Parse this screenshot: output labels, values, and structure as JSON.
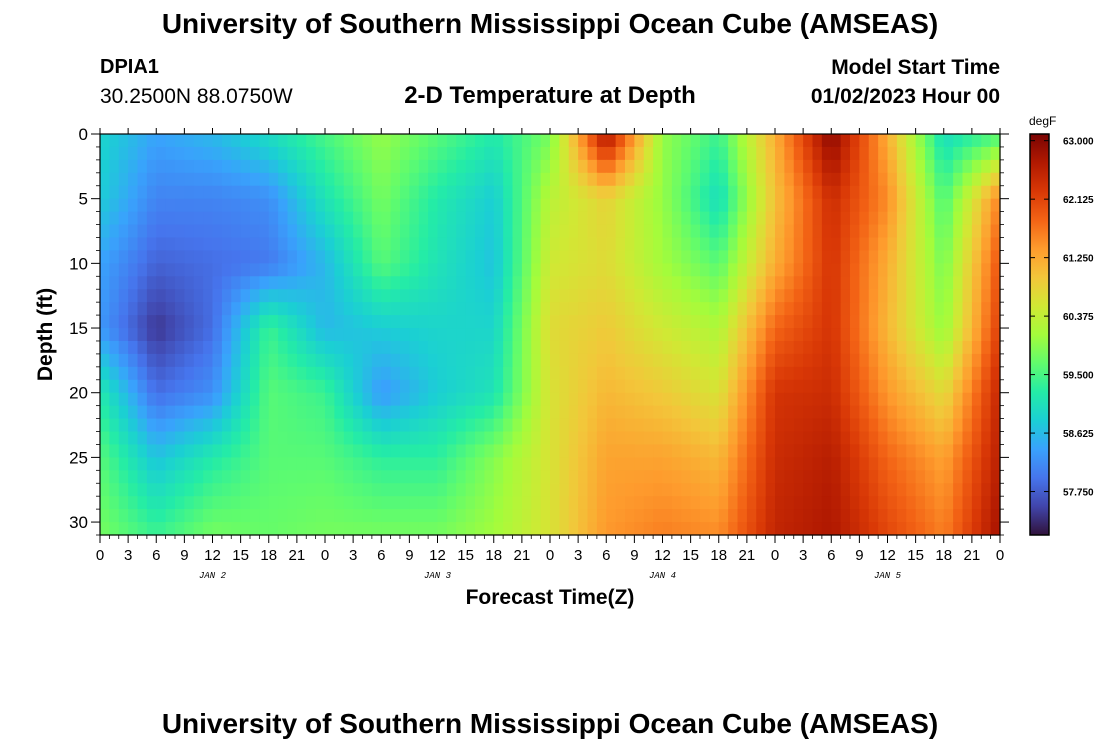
{
  "header": {
    "title": "University of Southern Mississippi Ocean Cube (AMSEAS)",
    "station": "DPIA1",
    "coords": "30.2500N  88.0750W",
    "subtitle": "2-D Temperature at Depth",
    "model_start_label": "Model Start Time",
    "model_start_value": "01/02/2023 Hour 00"
  },
  "footer": {
    "title": "University of Southern Mississippi Ocean Cube (AMSEAS)"
  },
  "chart_data": {
    "type": "heatmap",
    "title": "2-D Temperature at Depth",
    "xlabel": "Forecast Time(Z)",
    "ylabel": "Depth (ft)",
    "x_unit": "hours since 01/02/2023 00Z",
    "xlim": [
      0,
      96
    ],
    "ylim": [
      0,
      31
    ],
    "x_tick_values": [
      0,
      3,
      6,
      9,
      12,
      15,
      18,
      21,
      24,
      27,
      30,
      33,
      36,
      39,
      42,
      45,
      48,
      51,
      54,
      57,
      60,
      63,
      66,
      69,
      72,
      75,
      78,
      81,
      84,
      87,
      90,
      93,
      96
    ],
    "x_tick_labels": [
      "0",
      "3",
      "6",
      "9",
      "12",
      "15",
      "18",
      "21",
      "0",
      "3",
      "6",
      "9",
      "12",
      "15",
      "18",
      "21",
      "0",
      "3",
      "6",
      "9",
      "12",
      "15",
      "18",
      "21",
      "0",
      "3",
      "6",
      "9",
      "12",
      "15",
      "18",
      "21",
      "0"
    ],
    "date_labels": [
      {
        "label": "JAN 2",
        "hour": 12
      },
      {
        "label": "JAN 3",
        "hour": 36
      },
      {
        "label": "JAN 4",
        "hour": 60
      },
      {
        "label": "JAN 5",
        "hour": 84
      }
    ],
    "y_ticks": [
      0,
      5,
      10,
      15,
      20,
      25,
      30
    ],
    "y_tick_labels": [
      "0",
      "5",
      "10",
      "15",
      "20",
      "25",
      "30"
    ],
    "colorbar": {
      "unit": "degF",
      "min": 57.1,
      "max": 63.1,
      "tick_values": [
        63.0,
        62.125,
        61.25,
        60.375,
        59.5,
        58.625,
        57.75
      ],
      "tick_labels": [
        "63.000",
        "62.125",
        "61.250",
        "60.375",
        "59.500",
        "58.625",
        "57.750"
      ],
      "colormap": [
        "#30123b",
        "#4145ab",
        "#4675ed",
        "#39a2fc",
        "#1bcfd4",
        "#24eca6",
        "#61fc6c",
        "#a4fc3b",
        "#d1e834",
        "#f3c63a",
        "#fe9b2d",
        "#f36315",
        "#d93806",
        "#b11901",
        "#7a0403"
      ]
    },
    "depths": [
      0,
      5,
      10,
      15,
      20,
      25,
      31
    ],
    "times": [
      0,
      6,
      12,
      18,
      24,
      30,
      36,
      42,
      48,
      54,
      60,
      66,
      72,
      78,
      84,
      90,
      96
    ],
    "values": [
      [
        58.9,
        58.4,
        58.6,
        59.0,
        59.5,
        60.0,
        59.6,
        59.2,
        59.8,
        62.8,
        60.0,
        59.4,
        61.2,
        63.0,
        61.2,
        59.0,
        59.5
      ],
      [
        58.8,
        58.1,
        58.1,
        58.2,
        59.1,
        59.8,
        59.2,
        58.8,
        60.3,
        60.8,
        60.0,
        59.0,
        61.0,
        62.4,
        61.5,
        59.5,
        61.6
      ],
      [
        58.4,
        57.8,
        57.9,
        58.0,
        58.6,
        59.6,
        59.1,
        58.7,
        60.5,
        60.7,
        60.1,
        59.6,
        61.2,
        62.3,
        61.2,
        59.8,
        62.0
      ],
      [
        58.3,
        57.4,
        57.9,
        59.4,
        58.6,
        58.8,
        58.9,
        58.9,
        60.7,
        60.9,
        60.5,
        60.2,
        61.8,
        62.3,
        61.1,
        60.0,
        62.2
      ],
      [
        59.2,
        57.9,
        58.2,
        59.6,
        59.4,
        58.3,
        58.8,
        59.1,
        60.6,
        61.1,
        60.9,
        60.6,
        62.3,
        62.4,
        61.4,
        60.7,
        62.5
      ],
      [
        59.6,
        58.7,
        59.2,
        59.6,
        59.6,
        59.3,
        59.3,
        59.9,
        60.6,
        61.3,
        61.3,
        61.1,
        62.4,
        62.6,
        61.8,
        61.3,
        62.6
      ],
      [
        59.8,
        59.4,
        59.8,
        59.7,
        59.8,
        59.8,
        59.8,
        60.1,
        60.6,
        61.4,
        61.6,
        61.5,
        62.5,
        62.7,
        62.1,
        61.6,
        62.8
      ]
    ]
  }
}
